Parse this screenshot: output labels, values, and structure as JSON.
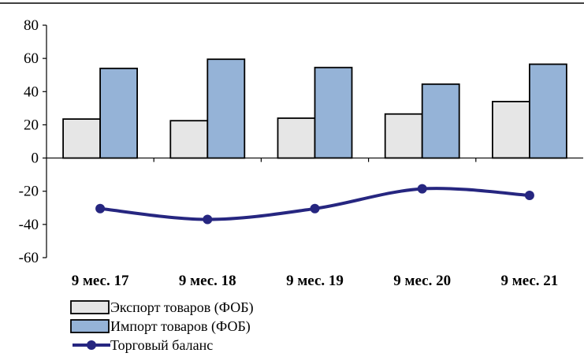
{
  "chart_data": {
    "type": "bar",
    "categories": [
      "9 мес. 17",
      "9 мес. 18",
      "9 мес. 19",
      "9 мес. 20",
      "9 мес. 21"
    ],
    "series": [
      {
        "name": "Экспорт товаров (ФОБ)",
        "kind": "bar",
        "color": "#e6e6e6",
        "values": [
          23.5,
          22.5,
          24,
          26.5,
          34
        ]
      },
      {
        "name": "Импорт товаров (ФОБ)",
        "kind": "bar",
        "color": "#95b3d7",
        "values": [
          54,
          59.5,
          54.5,
          44.5,
          56.5
        ]
      },
      {
        "name": "Торговый баланс",
        "kind": "line",
        "color": "#262680",
        "values": [
          -30.5,
          -37,
          -30.5,
          -18.5,
          -22.5
        ]
      }
    ],
    "ylim": [
      -60,
      80
    ],
    "yticks": [
      80,
      60,
      40,
      20,
      0,
      -20,
      -40,
      -60
    ],
    "ytick_labels": [
      "80",
      "60",
      "40",
      "20",
      "0",
      "-20",
      "-40",
      "-60"
    ],
    "title": "",
    "xlabel": "",
    "ylabel": "",
    "grid": false,
    "legend_position": "bottom-left"
  }
}
